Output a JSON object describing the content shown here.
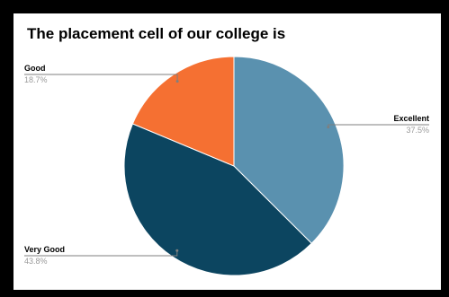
{
  "chart_data": {
    "type": "pie",
    "title": "The placement cell of our college is",
    "slices": [
      {
        "label": "Excellent",
        "percent_label": "37.5%",
        "value": 37.5,
        "color": "#5a91af"
      },
      {
        "label": "Very Good",
        "percent_label": "43.8%",
        "value": 43.8,
        "color": "#0c4560"
      },
      {
        "label": "Good",
        "percent_label": "18.7%",
        "value": 18.7,
        "color": "#f57032"
      }
    ],
    "start": "12 o'clock",
    "direction": "clockwise",
    "legend": "none",
    "leader_line_color": "#7f7f7f",
    "percent_label_color": "#9a9a9a"
  }
}
